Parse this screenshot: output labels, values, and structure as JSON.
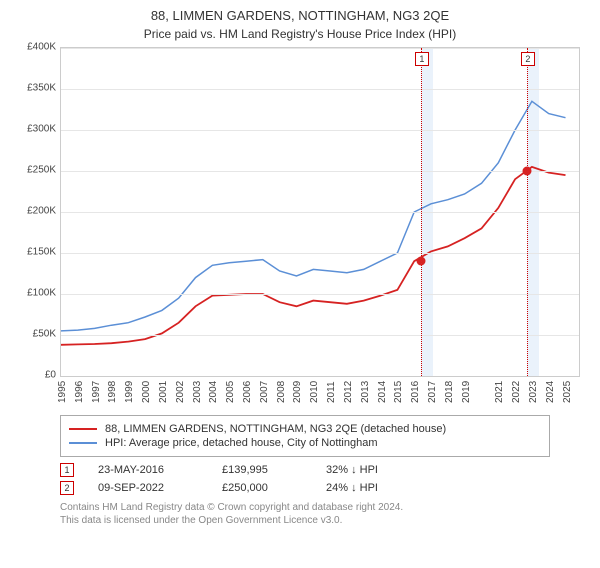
{
  "title": "88, LIMMEN GARDENS, NOTTINGHAM, NG3 2QE",
  "subtitle": "Price paid vs. HM Land Registry's House Price Index (HPI)",
  "chart": {
    "type": "line",
    "x_start": 1995,
    "x_end": 2025.8,
    "xticks": [
      1995,
      1996,
      1997,
      1998,
      1999,
      2000,
      2001,
      2002,
      2003,
      2004,
      2005,
      2006,
      2007,
      2008,
      2009,
      2010,
      2011,
      2012,
      2013,
      2014,
      2015,
      2016,
      2017,
      2018,
      2019,
      2021,
      2022,
      2023,
      2024,
      2025
    ],
    "ylim": [
      0,
      400000
    ],
    "ytick_step": 50000,
    "yticks": [
      "£0",
      "£50K",
      "£100K",
      "£150K",
      "£200K",
      "£250K",
      "£300K",
      "£350K",
      "£400K"
    ],
    "grid_color": "#e6e6e6",
    "background_bands": [
      {
        "x": 2016.4,
        "w": 0.7,
        "color": "#eaf2fb"
      },
      {
        "x": 2022.7,
        "w": 0.7,
        "color": "#eaf2fb"
      }
    ],
    "event_lines": [
      {
        "x": 2016.4,
        "color": "#cc0000",
        "label": "1"
      },
      {
        "x": 2022.7,
        "color": "#cc0000",
        "label": "2"
      }
    ],
    "series": [
      {
        "id": "hpi",
        "label": "HPI: Average price, detached house, City of Nottingham",
        "color": "#5b8fd6",
        "width": 1.5,
        "data": [
          [
            1995,
            55000
          ],
          [
            1996,
            56000
          ],
          [
            1997,
            58000
          ],
          [
            1998,
            62000
          ],
          [
            1999,
            65000
          ],
          [
            2000,
            72000
          ],
          [
            2001,
            80000
          ],
          [
            2002,
            95000
          ],
          [
            2003,
            120000
          ],
          [
            2004,
            135000
          ],
          [
            2005,
            138000
          ],
          [
            2006,
            140000
          ],
          [
            2007,
            142000
          ],
          [
            2008,
            128000
          ],
          [
            2009,
            122000
          ],
          [
            2010,
            130000
          ],
          [
            2011,
            128000
          ],
          [
            2012,
            126000
          ],
          [
            2013,
            130000
          ],
          [
            2014,
            140000
          ],
          [
            2015,
            150000
          ],
          [
            2016,
            200000
          ],
          [
            2017,
            210000
          ],
          [
            2018,
            215000
          ],
          [
            2019,
            222000
          ],
          [
            2020,
            235000
          ],
          [
            2021,
            260000
          ],
          [
            2022,
            300000
          ],
          [
            2023,
            335000
          ],
          [
            2024,
            320000
          ],
          [
            2025,
            315000
          ]
        ]
      },
      {
        "id": "property",
        "label": "88, LIMMEN GARDENS, NOTTINGHAM, NG3 2QE (detached house)",
        "color": "#d62222",
        "width": 1.8,
        "data": [
          [
            1995,
            38000
          ],
          [
            1996,
            38500
          ],
          [
            1997,
            39000
          ],
          [
            1998,
            40000
          ],
          [
            1999,
            42000
          ],
          [
            2000,
            45000
          ],
          [
            2001,
            52000
          ],
          [
            2002,
            65000
          ],
          [
            2003,
            85000
          ],
          [
            2004,
            98000
          ],
          [
            2005,
            99000
          ],
          [
            2006,
            100000
          ],
          [
            2007,
            100000
          ],
          [
            2008,
            90000
          ],
          [
            2009,
            85000
          ],
          [
            2010,
            92000
          ],
          [
            2011,
            90000
          ],
          [
            2012,
            88000
          ],
          [
            2013,
            92000
          ],
          [
            2014,
            98000
          ],
          [
            2015,
            105000
          ],
          [
            2016,
            140000
          ],
          [
            2017,
            152000
          ],
          [
            2018,
            158000
          ],
          [
            2019,
            168000
          ],
          [
            2020,
            180000
          ],
          [
            2021,
            205000
          ],
          [
            2022,
            240000
          ],
          [
            2023,
            255000
          ],
          [
            2024,
            248000
          ],
          [
            2025,
            245000
          ]
        ]
      }
    ],
    "markers": [
      {
        "x": 2016.4,
        "y": 139995,
        "color": "#d62222"
      },
      {
        "x": 2022.7,
        "y": 250000,
        "color": "#d62222"
      }
    ]
  },
  "legend": {
    "items": [
      {
        "color": "#d62222",
        "text": "88, LIMMEN GARDENS, NOTTINGHAM, NG3 2QE (detached house)"
      },
      {
        "color": "#5b8fd6",
        "text": "HPI: Average price, detached house, City of Nottingham"
      }
    ]
  },
  "events": [
    {
      "num": "1",
      "date": "23-MAY-2016",
      "price": "£139,995",
      "pct": "32% ↓ HPI"
    },
    {
      "num": "2",
      "date": "09-SEP-2022",
      "price": "£250,000",
      "pct": "24% ↓ HPI"
    }
  ],
  "footer_line1": "Contains HM Land Registry data © Crown copyright and database right 2024.",
  "footer_line2": "This data is licensed under the Open Government Licence v3.0."
}
